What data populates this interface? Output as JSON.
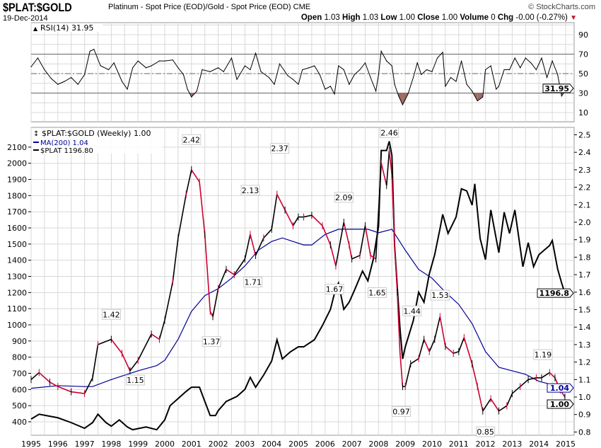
{
  "header": {
    "symbol": "$PLAT:$GOLD",
    "description": "Platinum  - Spot Price (EOD)/Gold - Spot Price (EOD)",
    "exchange": "CME",
    "brand": "© StockCharts.com",
    "date": "19-Dec-2014",
    "open_label": "Open",
    "open": "1.03",
    "high_label": "High",
    "high": "1.03",
    "low_label": "Low",
    "low": "1.00",
    "close_label": "Close",
    "close": "1.00",
    "volume_label": "Volume",
    "volume": "0",
    "chg_label": "Chg",
    "chg": "-0.00 (-0.27%)",
    "chg_icon": "down-triangle-icon"
  },
  "colors": {
    "ratio_up": "#000000",
    "ratio_down": "#cc0033",
    "ma": "#000099",
    "plat": "#000000",
    "rsi": "#000000",
    "rsi_fill": "#a06b66",
    "grid": "#d8d8d8"
  },
  "chart_data": [
    {
      "type": "line",
      "title": "RSI(14) 31.95",
      "ylim": [
        0,
        100
      ],
      "yticks": [
        10,
        30,
        50,
        70,
        90
      ],
      "reference_lines": [
        30,
        50,
        70
      ],
      "last_value_label": "31.95",
      "x": [
        1995.0,
        1995.25,
        1995.5,
        1995.75,
        1996.0,
        1996.25,
        1996.5,
        1996.75,
        1997.0,
        1997.2,
        1997.35,
        1997.6,
        1997.9,
        1998.1,
        1998.4,
        1998.6,
        1998.8,
        1999.0,
        1999.3,
        1999.5,
        1999.8,
        2000.0,
        2000.3,
        2000.5,
        2000.7,
        2000.85,
        2001.0,
        2001.2,
        2001.4,
        2001.7,
        2002.0,
        2002.2,
        2002.5,
        2002.7,
        2003.0,
        2003.2,
        2003.4,
        2003.6,
        2003.9,
        2004.1,
        2004.3,
        2004.6,
        2004.8,
        2005.0,
        2005.15,
        2005.4,
        2005.6,
        2005.8,
        2006.0,
        2006.2,
        2006.35,
        2006.5,
        2006.7,
        2006.9,
        2007.1,
        2007.3,
        2007.5,
        2007.7,
        2007.9,
        2008.0,
        2008.1,
        2008.3,
        2008.5,
        2008.6,
        2008.75,
        2008.9,
        2009.1,
        2009.3,
        2009.45,
        2009.6,
        2009.8,
        2010.0,
        2010.2,
        2010.4,
        2010.5,
        2010.7,
        2010.9,
        2011.1,
        2011.3,
        2011.5,
        2011.7,
        2011.9,
        2012.0,
        2012.2,
        2012.4,
        2012.5,
        2012.7,
        2012.9,
        2013.1,
        2013.3,
        2013.5,
        2013.7,
        2013.9,
        2014.1,
        2014.3,
        2014.5,
        2014.7,
        2014.85,
        2014.97
      ],
      "values": [
        57,
        66,
        54,
        45,
        39,
        42,
        46,
        39,
        49,
        73,
        75,
        58,
        54,
        61,
        42,
        34,
        56,
        63,
        56,
        58,
        63,
        63,
        64,
        56,
        49,
        34,
        26,
        32,
        54,
        52,
        56,
        52,
        66,
        44,
        58,
        54,
        71,
        52,
        46,
        39,
        60,
        48,
        44,
        39,
        54,
        56,
        58,
        49,
        34,
        37,
        29,
        58,
        54,
        39,
        49,
        54,
        61,
        46,
        32,
        49,
        73,
        63,
        58,
        39,
        27,
        18,
        29,
        46,
        61,
        49,
        54,
        52,
        66,
        72,
        37,
        46,
        42,
        63,
        39,
        32,
        22,
        26,
        54,
        58,
        34,
        37,
        54,
        54,
        66,
        56,
        66,
        61,
        54,
        66,
        46,
        63,
        49,
        27,
        31.95
      ]
    },
    {
      "type": "line",
      "title": "$PLAT:$GOLD (Weekly) 1.00",
      "legend": [
        {
          "name": "MA(200) 1.04",
          "color": "#000099"
        },
        {
          "name": "$PLAT 1196.80",
          "color": "#000000"
        }
      ],
      "xlim": [
        1995,
        2015
      ],
      "xticks": [
        1995,
        1996,
        1997,
        1998,
        1999,
        2000,
        2001,
        2002,
        2003,
        2004,
        2005,
        2006,
        2007,
        2008,
        2009,
        2010,
        2011,
        2012,
        2013,
        2014,
        2015
      ],
      "right_axis": {
        "ylim": [
          0.75,
          2.52
        ],
        "ticks": [
          0.8,
          0.9,
          1.0,
          1.1,
          1.2,
          1.3,
          1.4,
          1.5,
          1.6,
          1.7,
          1.8,
          1.9,
          2.0,
          2.1,
          2.2,
          2.3,
          2.4,
          2.5
        ]
      },
      "left_axis": {
        "ylim": [
          350,
          2150
        ],
        "ticks": [
          400,
          500,
          600,
          700,
          800,
          900,
          1000,
          1100,
          1200,
          1300,
          1400,
          1500,
          1600,
          1700,
          1800,
          1900,
          2000,
          2100
        ]
      },
      "series": [
        {
          "name": "$PLAT:$GOLD",
          "axis": "right",
          "last_label": "1.00",
          "x": [
            1995.0,
            1995.3,
            1995.7,
            1996.0,
            1996.5,
            1997.0,
            1997.3,
            1997.5,
            1998.0,
            1998.4,
            1998.7,
            1999.0,
            1999.5,
            1999.8,
            2000.0,
            2000.3,
            2000.5,
            2000.8,
            2001.0,
            2001.3,
            2001.5,
            2001.7,
            2001.8,
            2002.0,
            2002.3,
            2002.6,
            2003.0,
            2003.2,
            2003.4,
            2003.7,
            2004.0,
            2004.2,
            2004.5,
            2004.8,
            2005.0,
            2005.2,
            2005.5,
            2005.9,
            2006.2,
            2006.4,
            2006.7,
            2006.9,
            2007.0,
            2007.3,
            2007.5,
            2007.7,
            2007.9,
            2008.1,
            2008.3,
            2008.4,
            2008.5,
            2008.6,
            2008.7,
            2008.8,
            2008.9,
            2009.0,
            2009.2,
            2009.5,
            2009.7,
            2009.9,
            2010.1,
            2010.3,
            2010.5,
            2010.8,
            2011.0,
            2011.2,
            2011.5,
            2011.7,
            2011.9,
            2012.2,
            2012.5,
            2012.8,
            2013.0,
            2013.3,
            2013.6,
            2013.9,
            2014.1,
            2014.4,
            2014.6,
            2014.8,
            2014.97
          ],
          "values": [
            1.1,
            1.14,
            1.085,
            1.06,
            1.03,
            1.02,
            1.11,
            1.3,
            1.33,
            1.25,
            1.15,
            1.21,
            1.36,
            1.33,
            1.44,
            1.66,
            1.91,
            2.16,
            2.3,
            2.23,
            1.93,
            1.49,
            1.46,
            1.62,
            1.73,
            1.7,
            1.79,
            1.93,
            1.81,
            1.91,
            1.96,
            2.16,
            2.07,
            1.98,
            2.03,
            2.03,
            2.04,
            1.98,
            1.87,
            1.75,
            2.0,
            1.87,
            1.79,
            1.81,
            1.98,
            1.81,
            1.79,
            2.34,
            2.21,
            2.41,
            2.27,
            1.87,
            1.6,
            1.26,
            1.06,
            1.06,
            1.19,
            1.22,
            1.33,
            1.26,
            1.33,
            1.46,
            1.29,
            1.25,
            1.26,
            1.34,
            1.19,
            1.06,
            0.92,
            0.99,
            0.92,
            0.95,
            1.02,
            1.06,
            1.1,
            1.11,
            1.11,
            1.14,
            1.11,
            1.04,
            1.0
          ]
        },
        {
          "name": "MA(200)",
          "axis": "right",
          "last_label": "1.04",
          "x": [
            1995.0,
            1996.0,
            1997.0,
            1997.3,
            1998.0,
            1999.0,
            1999.7,
            2000.0,
            2000.5,
            2001.0,
            2001.5,
            2002.0,
            2002.5,
            2003.0,
            2003.5,
            2004.0,
            2004.4,
            2004.8,
            2005.2,
            2005.5,
            2006.0,
            2006.5,
            2007.0,
            2007.6,
            2008.0,
            2008.5,
            2009.0,
            2009.5,
            2010.0,
            2010.5,
            2011.0,
            2011.5,
            2012.0,
            2012.5,
            2013.0,
            2013.5,
            2014.0,
            2014.5,
            2014.97
          ],
          "values": [
            1.05,
            1.065,
            1.06,
            1.06,
            1.1,
            1.15,
            1.18,
            1.21,
            1.33,
            1.49,
            1.58,
            1.62,
            1.68,
            1.75,
            1.84,
            1.89,
            1.91,
            1.89,
            1.87,
            1.87,
            1.93,
            1.96,
            1.96,
            1.96,
            1.94,
            1.96,
            1.84,
            1.73,
            1.68,
            1.6,
            1.53,
            1.42,
            1.26,
            1.17,
            1.15,
            1.13,
            1.09,
            1.07,
            1.04
          ]
        },
        {
          "name": "$PLAT",
          "axis": "left",
          "last_label": "1196.8",
          "x": [
            1995.0,
            1995.3,
            1996.0,
            1996.5,
            1997.0,
            1997.3,
            1997.5,
            1997.8,
            1998.0,
            1998.3,
            1998.6,
            1998.8,
            1999.3,
            1999.7,
            2000.0,
            2000.2,
            2000.5,
            2000.8,
            2001.0,
            2001.3,
            2001.5,
            2001.7,
            2001.9,
            2002.0,
            2002.3,
            2002.7,
            2003.0,
            2003.2,
            2003.4,
            2003.7,
            2004.0,
            2004.2,
            2004.4,
            2004.7,
            2005.0,
            2005.2,
            2005.6,
            2005.9,
            2006.2,
            2006.4,
            2006.5,
            2006.7,
            2006.9,
            2007.1,
            2007.4,
            2007.6,
            2007.8,
            2008.0,
            2008.1,
            2008.3,
            2008.4,
            2008.5,
            2008.6,
            2008.8,
            2008.9,
            2009.0,
            2009.3,
            2009.5,
            2009.7,
            2009.9,
            2010.1,
            2010.3,
            2010.4,
            2010.6,
            2010.9,
            2011.1,
            2011.3,
            2011.5,
            2011.6,
            2011.8,
            2012.0,
            2012.2,
            2012.5,
            2012.7,
            2012.9,
            2013.1,
            2013.4,
            2013.6,
            2013.8,
            2014.0,
            2014.4,
            2014.5,
            2014.7,
            2014.85,
            2014.97
          ],
          "values": [
            417,
            447,
            425,
            395,
            360,
            395,
            447,
            395,
            373,
            412,
            368,
            351,
            368,
            351,
            412,
            500,
            544,
            588,
            614,
            614,
            526,
            439,
            439,
            469,
            526,
            557,
            601,
            675,
            614,
            689,
            776,
            908,
            789,
            833,
            864,
            864,
            908,
            996,
            1096,
            1228,
            1259,
            1096,
            1140,
            1215,
            1333,
            1272,
            1404,
            1610,
            2079,
            2079,
            2136,
            2048,
            1491,
            982,
            789,
            864,
            1026,
            1202,
            1140,
            1316,
            1434,
            1596,
            1684,
            1566,
            1667,
            1842,
            1829,
            1741,
            1873,
            1535,
            1404,
            1711,
            1447,
            1697,
            1566,
            1711,
            1360,
            1509,
            1360,
            1434,
            1491,
            1522,
            1346,
            1259,
            1196.8
          ]
        }
      ],
      "annotations": [
        {
          "x": 1998.0,
          "y": 1.42,
          "label": "1.42",
          "pos": "above"
        },
        {
          "x": 1998.9,
          "y": 1.15,
          "label": "1.15",
          "pos": "below"
        },
        {
          "x": 2001.0,
          "y": 2.42,
          "label": "2.42",
          "pos": "above"
        },
        {
          "x": 2001.75,
          "y": 1.37,
          "label": "1.37",
          "pos": "below"
        },
        {
          "x": 2003.2,
          "y": 2.13,
          "label": "2.13",
          "pos": "above"
        },
        {
          "x": 2003.3,
          "y": 1.71,
          "label": "1.71",
          "pos": "below"
        },
        {
          "x": 2004.3,
          "y": 2.37,
          "label": "2.37",
          "pos": "above"
        },
        {
          "x": 2006.7,
          "y": 2.09,
          "label": "2.09",
          "pos": "above"
        },
        {
          "x": 2006.35,
          "y": 1.67,
          "label": "1.67",
          "pos": "below"
        },
        {
          "x": 2007.95,
          "y": 1.65,
          "label": "1.65",
          "pos": "below"
        },
        {
          "x": 2008.4,
          "y": 2.46,
          "label": "2.46",
          "pos": "above"
        },
        {
          "x": 2008.85,
          "y": 0.97,
          "label": "0.97",
          "pos": "below"
        },
        {
          "x": 2009.25,
          "y": 1.44,
          "label": "1.44",
          "pos": "above"
        },
        {
          "x": 2010.3,
          "y": 1.53,
          "label": "1.53",
          "pos": "above"
        },
        {
          "x": 2012.0,
          "y": 0.85,
          "label": "0.85",
          "pos": "below"
        },
        {
          "x": 2014.15,
          "y": 1.19,
          "label": "1.19",
          "pos": "above"
        }
      ]
    }
  ]
}
